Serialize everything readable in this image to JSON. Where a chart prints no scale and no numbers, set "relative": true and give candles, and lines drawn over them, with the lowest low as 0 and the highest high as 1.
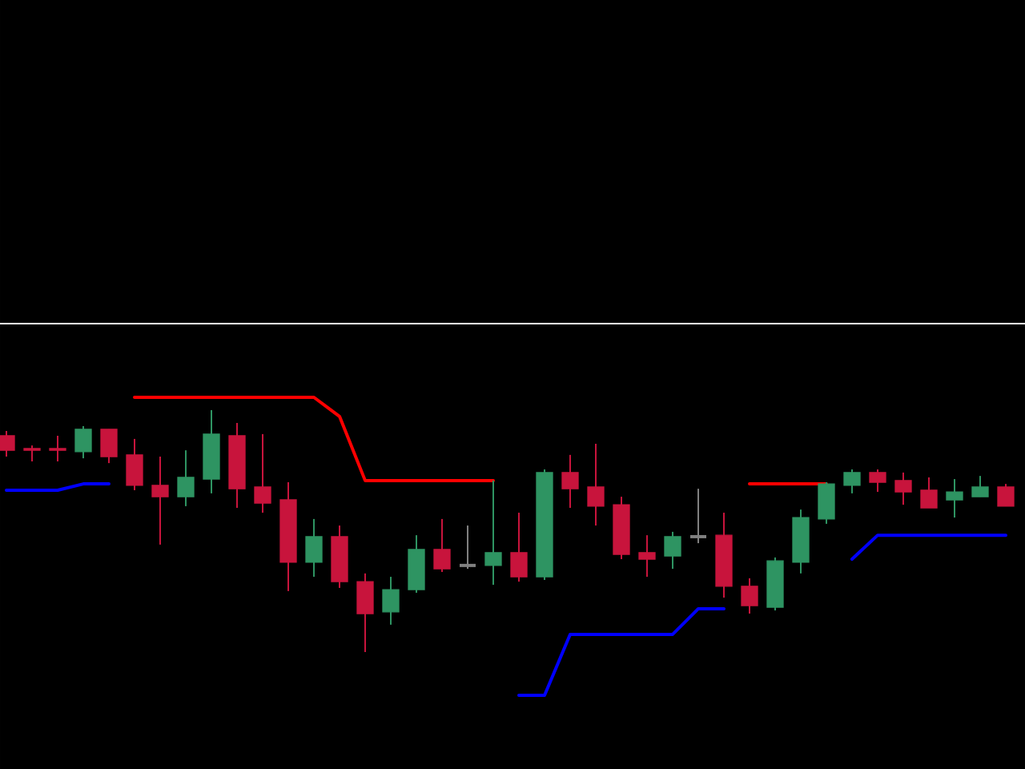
{
  "chart_data": {
    "type": "candlestick",
    "relative": true,
    "categories": [
      null,
      null,
      null,
      null,
      null,
      null,
      null,
      null,
      null,
      null,
      null,
      null,
      null,
      null,
      null,
      null,
      null,
      null,
      null,
      null,
      null,
      null,
      null,
      null,
      null,
      null,
      null,
      null,
      null,
      null,
      null,
      null,
      null,
      null,
      null,
      null,
      null,
      null,
      null,
      null
    ],
    "ohlc": [
      [
        0.894,
        0.914,
        0.808,
        0.834
      ],
      [
        0.841,
        0.854,
        0.788,
        0.834
      ],
      [
        0.841,
        0.894,
        0.788,
        0.834
      ],
      [
        0.828,
        0.934,
        0.801,
        0.921
      ],
      [
        0.921,
        0.921,
        0.781,
        0.808
      ],
      [
        0.815,
        0.881,
        0.669,
        0.689
      ],
      [
        0.689,
        0.808,
        0.444,
        0.642
      ],
      [
        0.642,
        0.834,
        0.603,
        0.722
      ],
      [
        0.715,
        1,
        0.656,
        0.901
      ],
      [
        0.894,
        0.947,
        0.596,
        0.675
      ],
      [
        0.682,
        0.901,
        0.576,
        0.616
      ],
      [
        0.629,
        0.702,
        0.252,
        0.371
      ],
      [
        0.371,
        0.55,
        0.311,
        0.477
      ],
      [
        0.477,
        0.523,
        0.265,
        0.291
      ],
      [
        0.291,
        0.325,
        0,
        0.159
      ],
      [
        0.166,
        0.311,
        0.113,
        0.258
      ],
      [
        0.258,
        0.483,
        0.245,
        0.424
      ],
      [
        0.424,
        0.55,
        0.331,
        0.344
      ],
      [
        0.358,
        0.523,
        0.344,
        0.358
      ],
      [
        0.358,
        0.709,
        0.278,
        0.411
      ],
      [
        0.411,
        0.576,
        0.291,
        0.311
      ],
      [
        0.311,
        0.755,
        0.298,
        0.742
      ],
      [
        0.742,
        0.815,
        0.596,
        0.675
      ],
      [
        0.682,
        0.861,
        0.523,
        0.603
      ],
      [
        0.609,
        0.642,
        0.384,
        0.404
      ],
      [
        0.411,
        0.483,
        0.311,
        0.384
      ],
      [
        0.397,
        0.497,
        0.344,
        0.477
      ],
      [
        0.477,
        0.675,
        0.45,
        0.477
      ],
      [
        0.483,
        0.576,
        0.225,
        0.272
      ],
      [
        0.272,
        0.305,
        0.159,
        0.192
      ],
      [
        0.185,
        0.391,
        0.172,
        0.377
      ],
      [
        0.371,
        0.589,
        0.325,
        0.556
      ],
      [
        0.55,
        0.702,
        0.53,
        0.695
      ],
      [
        0.689,
        0.755,
        0.656,
        0.742
      ],
      [
        0.742,
        0.755,
        0.662,
        0.702
      ],
      [
        0.709,
        0.742,
        0.609,
        0.662
      ],
      [
        0.669,
        0.722,
        0.596,
        0.596
      ],
      [
        0.629,
        0.715,
        0.556,
        0.662
      ],
      [
        0.642,
        0.728,
        0.642,
        0.682
      ],
      [
        0.682,
        0.695,
        0.603,
        0.603
      ]
    ],
    "colors": [
      "#c8143c",
      "#c8143c",
      "#c8143c",
      "#2e9462",
      "#c8143c",
      "#c8143c",
      "#c8143c",
      "#2e9462",
      "#2e9462",
      "#c8143c",
      "#c8143c",
      "#c8143c",
      "#2e9462",
      "#c8143c",
      "#c8143c",
      "#2e9462",
      "#2e9462",
      "#c8143c",
      "#808080",
      "#2e9462",
      "#c8143c",
      "#2e9462",
      "#c8143c",
      "#c8143c",
      "#c8143c",
      "#c8143c",
      "#2e9462",
      "#808080",
      "#c8143c",
      "#c8143c",
      "#2e9462",
      "#2e9462",
      "#2e9462",
      "#2e9462",
      "#c8143c",
      "#c8143c",
      "#c8143c",
      "#2e9462",
      "#2e9462",
      "#c8143c"
    ],
    "series": [
      {
        "type": "line",
        "color": "#ff0000",
        "values": [
          null,
          null,
          null,
          null,
          null,
          1.053,
          1.053,
          1.053,
          1.053,
          1.053,
          1.053,
          1.053,
          1.053,
          0.974,
          0.709,
          0.709,
          0.709,
          0.709,
          0.709,
          0.709,
          null,
          null,
          null,
          null,
          null,
          null,
          null,
          null,
          null,
          0.695,
          0.695,
          0.695,
          0.695,
          null,
          null,
          null,
          null,
          null,
          null,
          null
        ]
      },
      {
        "type": "line",
        "color": "#0000ff",
        "values": [
          0.669,
          0.669,
          0.669,
          0.695,
          0.695,
          null,
          null,
          null,
          null,
          null,
          null,
          null,
          null,
          null,
          null,
          null,
          null,
          null,
          null,
          null,
          -0.179,
          -0.179,
          0.073,
          0.073,
          0.073,
          0.073,
          0.073,
          0.179,
          0.179,
          null,
          null,
          null,
          null,
          0.384,
          0.483,
          0.483,
          0.483,
          0.483,
          0.483,
          0.483
        ]
      }
    ]
  }
}
